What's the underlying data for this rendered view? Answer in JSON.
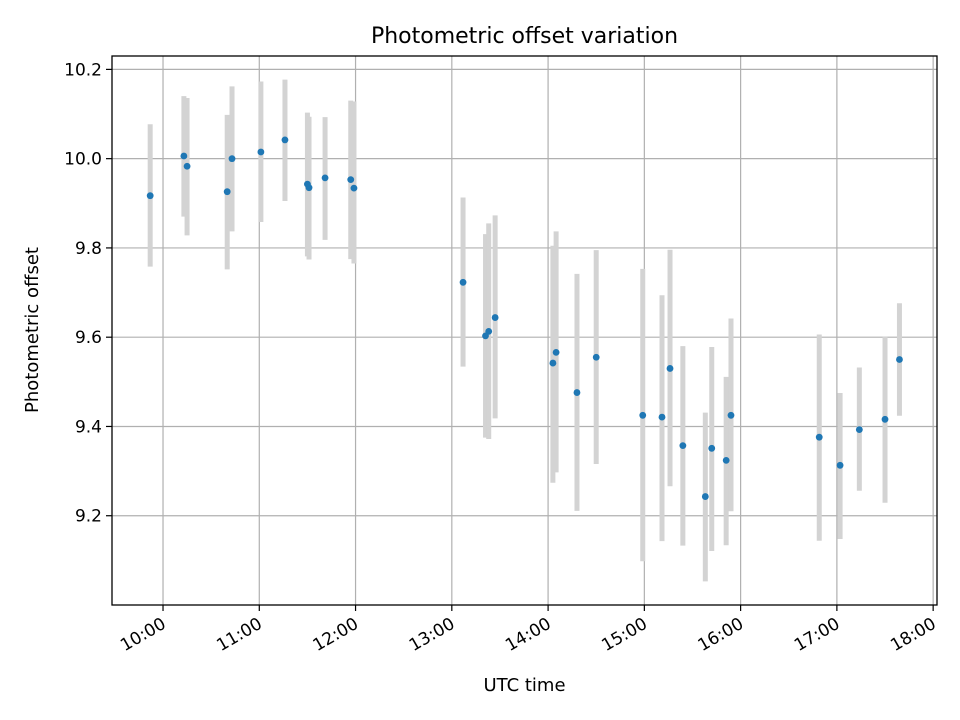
{
  "chart_data": {
    "type": "scatter",
    "title": "Photometric offset variation",
    "xlabel": "UTC time",
    "ylabel": "Photometric offset",
    "xlim_hours": [
      9.47,
      18.04
    ],
    "ylim": [
      9.0,
      10.23
    ],
    "x_ticks": [
      {
        "hour": 10,
        "label": "10:00"
      },
      {
        "hour": 11,
        "label": "11:00"
      },
      {
        "hour": 12,
        "label": "12:00"
      },
      {
        "hour": 13,
        "label": "13:00"
      },
      {
        "hour": 14,
        "label": "14:00"
      },
      {
        "hour": 15,
        "label": "15:00"
      },
      {
        "hour": 16,
        "label": "16:00"
      },
      {
        "hour": 17,
        "label": "17:00"
      },
      {
        "hour": 18,
        "label": "18:00"
      }
    ],
    "y_ticks": [
      {
        "value": 9.2,
        "label": "9.2"
      },
      {
        "value": 9.4,
        "label": "9.4"
      },
      {
        "value": 9.6,
        "label": "9.6"
      },
      {
        "value": 9.8,
        "label": "9.8"
      },
      {
        "value": 10.0,
        "label": "10.0"
      },
      {
        "value": 10.2,
        "label": "10.2"
      }
    ],
    "grid": true,
    "point_color": "#1f77b4",
    "errorbar_color": "#d3d3d3",
    "points": [
      {
        "x": "09:52",
        "y": 9.917,
        "lo": 9.758,
        "hi": 10.077
      },
      {
        "x": "10:13",
        "y": 10.006,
        "lo": 9.87,
        "hi": 10.14
      },
      {
        "x": "10:15",
        "y": 9.983,
        "lo": 9.828,
        "hi": 10.136
      },
      {
        "x": "10:40",
        "y": 9.926,
        "lo": 9.752,
        "hi": 10.098
      },
      {
        "x": "10:43",
        "y": 10.0,
        "lo": 9.837,
        "hi": 10.162
      },
      {
        "x": "11:01",
        "y": 10.015,
        "lo": 9.858,
        "hi": 10.173
      },
      {
        "x": "11:16",
        "y": 10.042,
        "lo": 9.905,
        "hi": 10.177
      },
      {
        "x": "11:30",
        "y": 9.943,
        "lo": 9.781,
        "hi": 10.103
      },
      {
        "x": "11:31",
        "y": 9.935,
        "lo": 9.774,
        "hi": 10.094
      },
      {
        "x": "11:41",
        "y": 9.957,
        "lo": 9.818,
        "hi": 10.093
      },
      {
        "x": "11:57",
        "y": 9.953,
        "lo": 9.775,
        "hi": 10.13
      },
      {
        "x": "11:59",
        "y": 9.934,
        "lo": 9.765,
        "hi": 10.128
      },
      {
        "x": "13:07",
        "y": 9.723,
        "lo": 9.534,
        "hi": 9.913
      },
      {
        "x": "13:21",
        "y": 9.603,
        "lo": 9.375,
        "hi": 9.831
      },
      {
        "x": "13:23",
        "y": 9.613,
        "lo": 9.372,
        "hi": 9.855
      },
      {
        "x": "13:27",
        "y": 9.644,
        "lo": 9.418,
        "hi": 9.873
      },
      {
        "x": "14:03",
        "y": 9.542,
        "lo": 9.274,
        "hi": 9.805
      },
      {
        "x": "14:05",
        "y": 9.566,
        "lo": 9.297,
        "hi": 9.837
      },
      {
        "x": "14:18",
        "y": 9.476,
        "lo": 9.211,
        "hi": 9.742
      },
      {
        "x": "14:30",
        "y": 9.555,
        "lo": 9.316,
        "hi": 9.795
      },
      {
        "x": "14:59",
        "y": 9.425,
        "lo": 9.098,
        "hi": 9.753
      },
      {
        "x": "15:11",
        "y": 9.421,
        "lo": 9.143,
        "hi": 9.694
      },
      {
        "x": "15:16",
        "y": 9.53,
        "lo": 9.266,
        "hi": 9.796
      },
      {
        "x": "15:24",
        "y": 9.357,
        "lo": 9.133,
        "hi": 9.58
      },
      {
        "x": "15:38",
        "y": 9.243,
        "lo": 9.053,
        "hi": 9.431
      },
      {
        "x": "15:42",
        "y": 9.351,
        "lo": 9.121,
        "hi": 9.578
      },
      {
        "x": "15:51",
        "y": 9.324,
        "lo": 9.134,
        "hi": 9.511
      },
      {
        "x": "15:54",
        "y": 9.425,
        "lo": 9.21,
        "hi": 9.642
      },
      {
        "x": "16:49",
        "y": 9.376,
        "lo": 9.144,
        "hi": 9.606
      },
      {
        "x": "17:02",
        "y": 9.313,
        "lo": 9.148,
        "hi": 9.475
      },
      {
        "x": "17:14",
        "y": 9.393,
        "lo": 9.256,
        "hi": 9.532
      },
      {
        "x": "17:30",
        "y": 9.416,
        "lo": 9.229,
        "hi": 9.601
      },
      {
        "x": "17:39",
        "y": 9.55,
        "lo": 9.424,
        "hi": 9.676
      }
    ]
  }
}
